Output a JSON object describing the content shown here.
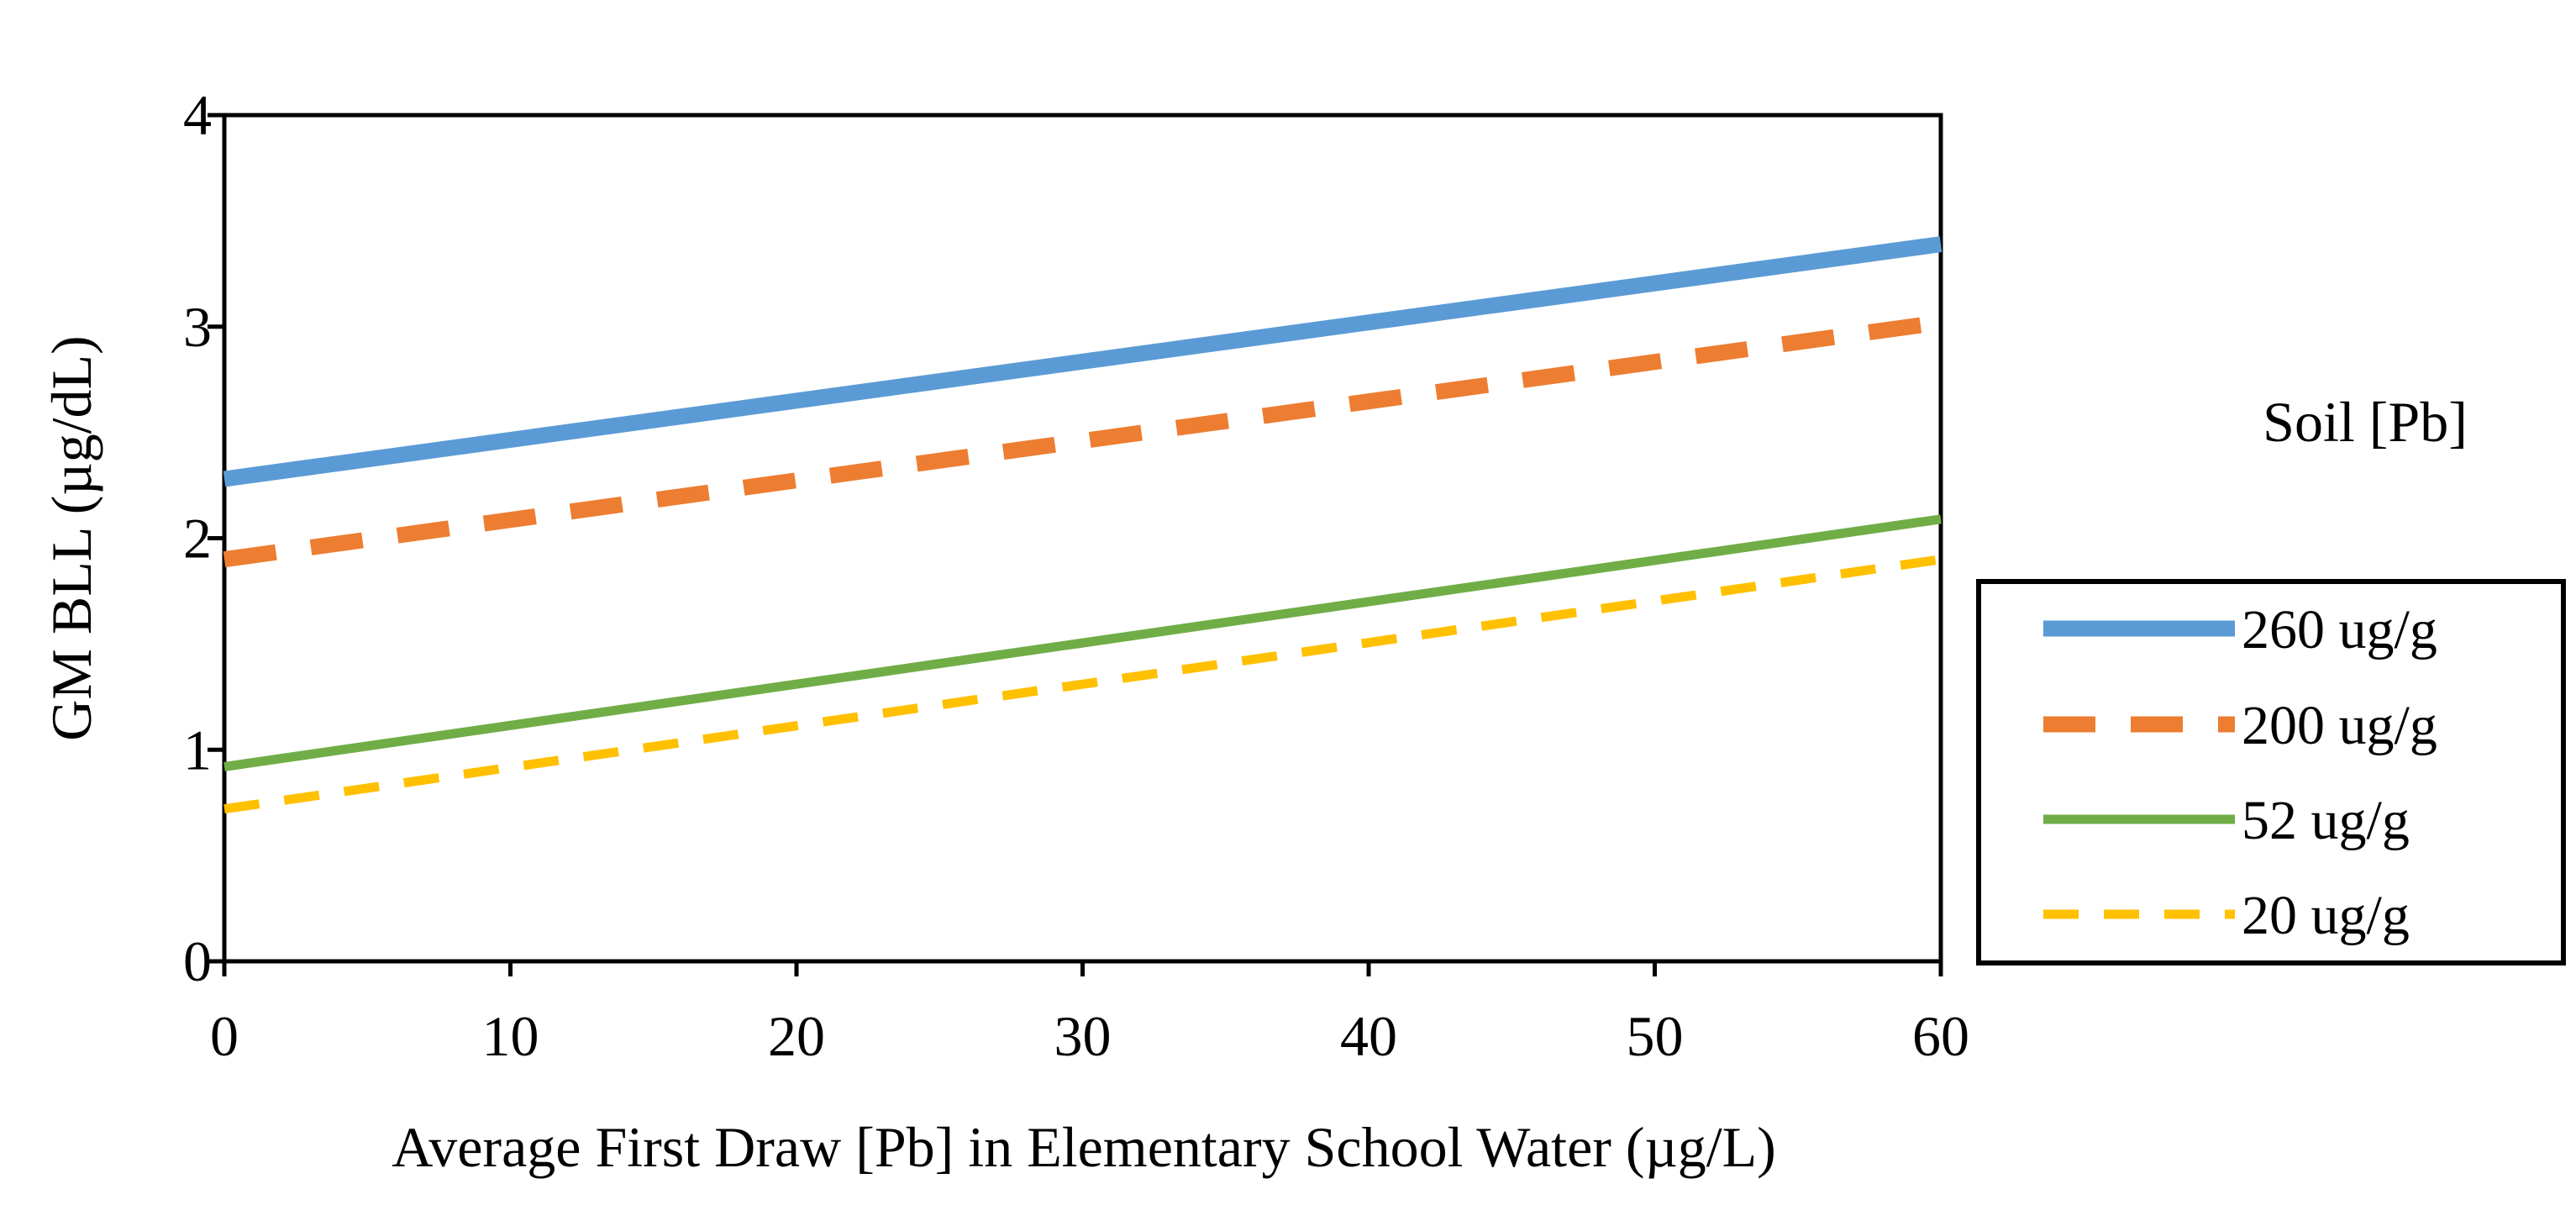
{
  "chart_data": {
    "type": "line",
    "title": "",
    "xlabel": "Average First Draw [Pb] in Elementary School Water (µg/L)",
    "ylabel": "GM BLL (µg/dL)",
    "xlim": [
      0,
      60
    ],
    "ylim": [
      0,
      4
    ],
    "xticks": [
      0,
      10,
      20,
      30,
      40,
      50,
      60
    ],
    "yticks": [
      0,
      1,
      2,
      3,
      4
    ],
    "xtick_labels": [
      "0",
      "10",
      "20",
      "30",
      "40",
      "50",
      "60"
    ],
    "ytick_labels": [
      "0",
      "1",
      "2",
      "3",
      "4"
    ],
    "grid": false,
    "legend": {
      "title": "Soil [Pb]",
      "placement": "right"
    },
    "series": [
      {
        "name": "260 ug/g",
        "x": [
          0,
          60
        ],
        "values": [
          2.28,
          3.39
        ],
        "color": "#5B9BD5",
        "style": "solid",
        "weight": "heavy"
      },
      {
        "name": "200 ug/g",
        "x": [
          0,
          60
        ],
        "values": [
          1.9,
          3.02
        ],
        "color": "#ED7D31",
        "style": "dashed",
        "weight": "heavy"
      },
      {
        "name": "52 ug/g",
        "x": [
          0,
          60
        ],
        "values": [
          0.92,
          2.09
        ],
        "color": "#70AD47",
        "style": "solid",
        "weight": "light"
      },
      {
        "name": "20 ug/g",
        "x": [
          0,
          60
        ],
        "values": [
          0.72,
          1.9
        ],
        "color": "#FFC000",
        "style": "dashed",
        "weight": "light"
      }
    ]
  }
}
